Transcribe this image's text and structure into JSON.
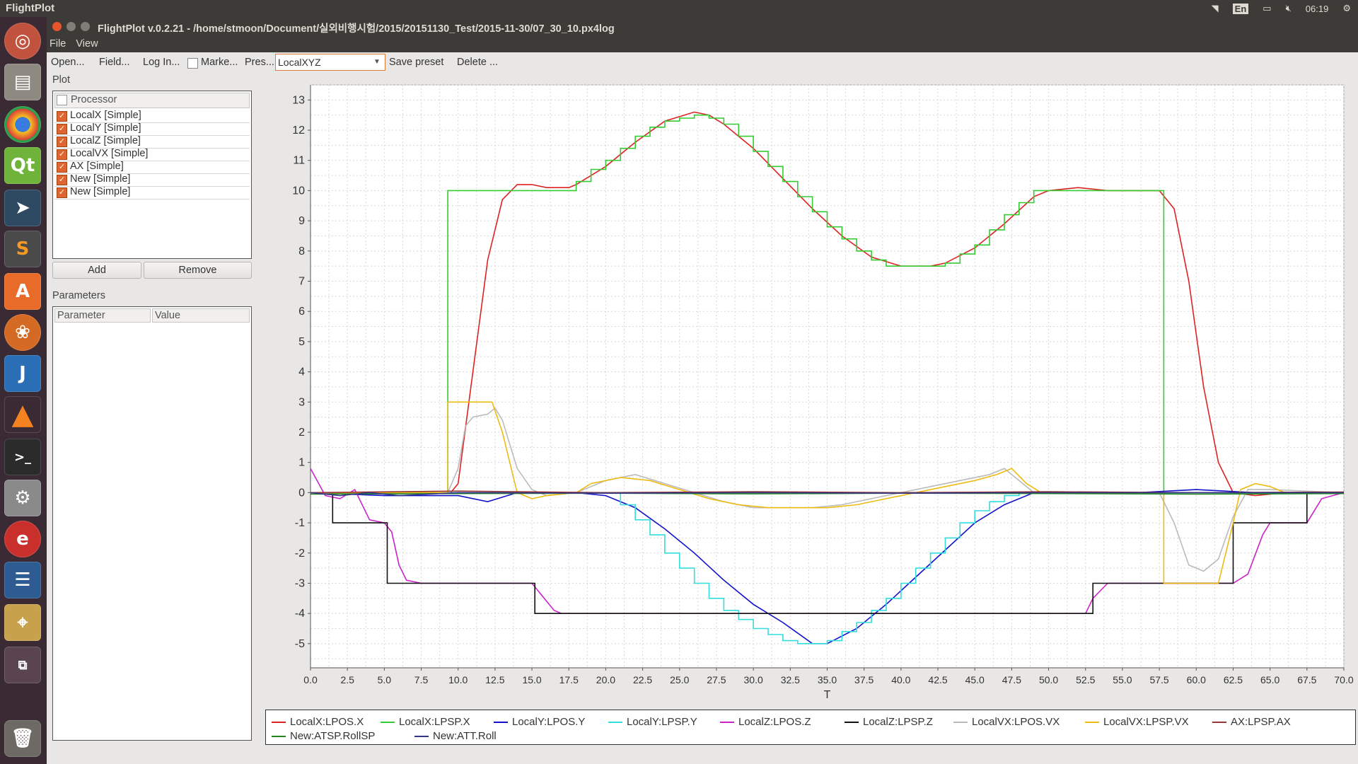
{
  "system": {
    "app_name": "FlightPlot",
    "tray": {
      "keyboard": "En",
      "clock": "06:19"
    }
  },
  "window": {
    "title": "FlightPlot v.0.2.21 - /home/stmoon/Document/실외비행시험/2015/20151130_Test/2015-11-30/07_30_10.px4log"
  },
  "menubar": {
    "items": [
      "File",
      "View"
    ]
  },
  "toolbar": {
    "open": "Open...",
    "fields": "Field...",
    "login": "Log In...",
    "markers": "Marke...",
    "presets": "Pres...",
    "preset_value": "LocalXYZ",
    "save_preset": "Save preset",
    "delete": "Delete ..."
  },
  "plot_panel": {
    "label": "Plot",
    "header": "Processor",
    "items": [
      "LocalX [Simple]",
      "LocalY [Simple]",
      "LocalZ [Simple]",
      "LocalVX [Simple]",
      "AX [Simple]",
      "New [Simple]",
      "New [Simple]"
    ],
    "add_label": "Add",
    "remove_label": "Remove"
  },
  "parameters_panel": {
    "label": "Parameters",
    "col_parameter": "Parameter",
    "col_value": "Value"
  },
  "chart_data": {
    "type": "line",
    "xlabel": "T",
    "xlim": [
      0,
      70
    ],
    "ylim": [
      -5.8,
      13.5
    ],
    "grid": true,
    "legend_position": "bottom",
    "x_ticks": [
      "0.0",
      "2.5",
      "5.0",
      "7.5",
      "10.0",
      "12.5",
      "15.0",
      "17.5",
      "20.0",
      "22.5",
      "25.0",
      "27.5",
      "30.0",
      "32.5",
      "35.0",
      "37.5",
      "40.0",
      "42.5",
      "45.0",
      "47.5",
      "50.0",
      "52.5",
      "55.0",
      "57.5",
      "60.0",
      "62.5",
      "65.0",
      "67.5",
      "70.0"
    ],
    "y_ticks": [
      "13",
      "12",
      "11",
      "10",
      "9",
      "8",
      "7",
      "6",
      "5",
      "4",
      "3",
      "2",
      "1",
      "0",
      "-1",
      "-2",
      "-3",
      "-4",
      "-5"
    ],
    "series": [
      {
        "name": "LocalX:LPOS.X",
        "color": "#dd2222",
        "step": false,
        "points": [
          [
            0,
            0
          ],
          [
            9.5,
            0
          ],
          [
            10,
            0.3
          ],
          [
            11,
            4
          ],
          [
            12,
            7.7
          ],
          [
            13,
            9.7
          ],
          [
            14,
            10.2
          ],
          [
            15,
            10.2
          ],
          [
            16,
            10.1
          ],
          [
            17.5,
            10.1
          ],
          [
            18,
            10.2
          ],
          [
            20,
            10.8
          ],
          [
            22,
            11.6
          ],
          [
            24,
            12.3
          ],
          [
            26,
            12.6
          ],
          [
            27,
            12.5
          ],
          [
            28,
            12.2
          ],
          [
            30,
            11.4
          ],
          [
            32,
            10.4
          ],
          [
            34,
            9.4
          ],
          [
            36,
            8.5
          ],
          [
            38,
            7.8
          ],
          [
            40,
            7.5
          ],
          [
            42,
            7.5
          ],
          [
            43,
            7.6
          ],
          [
            45,
            8.1
          ],
          [
            47,
            8.9
          ],
          [
            49,
            9.8
          ],
          [
            50,
            10
          ],
          [
            52,
            10.1
          ],
          [
            54,
            10
          ],
          [
            56,
            10
          ],
          [
            57.5,
            10
          ],
          [
            58.5,
            9.4
          ],
          [
            59.5,
            7
          ],
          [
            60.5,
            3.5
          ],
          [
            61.5,
            1
          ],
          [
            62.5,
            0
          ],
          [
            64,
            -0.1
          ],
          [
            66,
            0
          ],
          [
            70,
            0
          ]
        ]
      },
      {
        "name": "LocalX:LPSP.X",
        "color": "#33cc33",
        "step": true,
        "points": [
          [
            0,
            0
          ],
          [
            9.3,
            0
          ],
          [
            9.3,
            10
          ],
          [
            17.5,
            10
          ],
          [
            18,
            10.3
          ],
          [
            19,
            10.7
          ],
          [
            20,
            11
          ],
          [
            21,
            11.4
          ],
          [
            22,
            11.8
          ],
          [
            23,
            12.1
          ],
          [
            24,
            12.3
          ],
          [
            25,
            12.4
          ],
          [
            26,
            12.5
          ],
          [
            27,
            12.4
          ],
          [
            28,
            12.2
          ],
          [
            29,
            11.8
          ],
          [
            30,
            11.3
          ],
          [
            31,
            10.8
          ],
          [
            32,
            10.3
          ],
          [
            33,
            9.8
          ],
          [
            34,
            9.3
          ],
          [
            35,
            8.8
          ],
          [
            36,
            8.4
          ],
          [
            37,
            8.0
          ],
          [
            38,
            7.7
          ],
          [
            39,
            7.5
          ],
          [
            40,
            7.5
          ],
          [
            41,
            7.5
          ],
          [
            42,
            7.5
          ],
          [
            43,
            7.6
          ],
          [
            44,
            7.9
          ],
          [
            45,
            8.2
          ],
          [
            46,
            8.7
          ],
          [
            47,
            9.2
          ],
          [
            48,
            9.6
          ],
          [
            49,
            10
          ],
          [
            57.8,
            10
          ],
          [
            57.8,
            0
          ],
          [
            70,
            0
          ]
        ]
      },
      {
        "name": "LocalY:LPOS.Y",
        "color": "#1111cc",
        "step": false,
        "points": [
          [
            0,
            0
          ],
          [
            5,
            -0.1
          ],
          [
            10,
            -0.1
          ],
          [
            12,
            -0.3
          ],
          [
            14,
            0
          ],
          [
            18,
            0
          ],
          [
            20,
            -0.1
          ],
          [
            22,
            -0.5
          ],
          [
            24,
            -1.2
          ],
          [
            26,
            -2
          ],
          [
            28,
            -2.9
          ],
          [
            30,
            -3.7
          ],
          [
            32,
            -4.3
          ],
          [
            34,
            -5
          ],
          [
            35,
            -5
          ],
          [
            37,
            -4.5
          ],
          [
            39,
            -3.7
          ],
          [
            41,
            -2.8
          ],
          [
            43,
            -1.9
          ],
          [
            45,
            -1
          ],
          [
            47,
            -0.4
          ],
          [
            49,
            0
          ],
          [
            52,
            0
          ],
          [
            56,
            0
          ],
          [
            60,
            0.1
          ],
          [
            64,
            0
          ],
          [
            70,
            0
          ]
        ]
      },
      {
        "name": "LocalY:LPSP.Y",
        "color": "#33dddd",
        "step": true,
        "points": [
          [
            0,
            0
          ],
          [
            20,
            0
          ],
          [
            21,
            -0.4
          ],
          [
            22,
            -0.9
          ],
          [
            23,
            -1.4
          ],
          [
            24,
            -2
          ],
          [
            25,
            -2.5
          ],
          [
            26,
            -3
          ],
          [
            27,
            -3.5
          ],
          [
            28,
            -3.9
          ],
          [
            29,
            -4.2
          ],
          [
            30,
            -4.5
          ],
          [
            31,
            -4.7
          ],
          [
            32,
            -4.9
          ],
          [
            33,
            -5
          ],
          [
            34,
            -5
          ],
          [
            35,
            -4.9
          ],
          [
            36,
            -4.6
          ],
          [
            37,
            -4.3
          ],
          [
            38,
            -3.9
          ],
          [
            39,
            -3.5
          ],
          [
            40,
            -3
          ],
          [
            41,
            -2.5
          ],
          [
            42,
            -2
          ],
          [
            43,
            -1.5
          ],
          [
            44,
            -1
          ],
          [
            45,
            -0.6
          ],
          [
            46,
            -0.3
          ],
          [
            47,
            -0.1
          ],
          [
            48,
            0
          ],
          [
            70,
            0
          ]
        ]
      },
      {
        "name": "LocalZ:LPOS.Z",
        "color": "#cc22cc",
        "step": false,
        "points": [
          [
            0,
            0.8
          ],
          [
            1,
            -0.1
          ],
          [
            2,
            -0.2
          ],
          [
            3,
            0.1
          ],
          [
            4,
            -0.9
          ],
          [
            5,
            -1
          ],
          [
            5.5,
            -1.3
          ],
          [
            6,
            -2.4
          ],
          [
            6.5,
            -2.9
          ],
          [
            7.5,
            -3
          ],
          [
            15,
            -3
          ],
          [
            15.5,
            -3.3
          ],
          [
            16.5,
            -3.9
          ],
          [
            17,
            -4
          ],
          [
            52.5,
            -4
          ],
          [
            53,
            -3.5
          ],
          [
            54,
            -3
          ],
          [
            62.5,
            -3
          ],
          [
            63.5,
            -2.7
          ],
          [
            64.5,
            -1.4
          ],
          [
            65,
            -1
          ],
          [
            67.5,
            -1
          ],
          [
            68.5,
            -0.2
          ],
          [
            70,
            0
          ]
        ]
      },
      {
        "name": "LocalZ:LPSP.Z",
        "color": "#111111",
        "step": true,
        "points": [
          [
            0,
            0
          ],
          [
            1.5,
            0
          ],
          [
            1.5,
            -1
          ],
          [
            5.2,
            -1
          ],
          [
            5.2,
            -3
          ],
          [
            15.2,
            -3
          ],
          [
            15.2,
            -4
          ],
          [
            53,
            -4
          ],
          [
            53,
            -3
          ],
          [
            62.5,
            -3
          ],
          [
            62.5,
            -1
          ],
          [
            67.5,
            -1
          ],
          [
            67.5,
            0
          ],
          [
            70,
            0
          ]
        ]
      },
      {
        "name": "LocalVX:LPOS.VX",
        "color": "#bbbbbb",
        "step": false,
        "points": [
          [
            0,
            0
          ],
          [
            9.3,
            0
          ],
          [
            10,
            0.8
          ],
          [
            10.5,
            2.2
          ],
          [
            11,
            2.5
          ],
          [
            12,
            2.6
          ],
          [
            12.5,
            2.8
          ],
          [
            13,
            2.4
          ],
          [
            14,
            0.8
          ],
          [
            15,
            0.1
          ],
          [
            16,
            -0.1
          ],
          [
            18,
            0
          ],
          [
            20,
            0.4
          ],
          [
            22,
            0.6
          ],
          [
            24,
            0.3
          ],
          [
            26,
            0
          ],
          [
            28,
            -0.3
          ],
          [
            30,
            -0.5
          ],
          [
            32,
            -0.5
          ],
          [
            34,
            -0.5
          ],
          [
            36,
            -0.4
          ],
          [
            38,
            -0.2
          ],
          [
            40,
            0
          ],
          [
            42,
            0.2
          ],
          [
            44,
            0.4
          ],
          [
            46,
            0.6
          ],
          [
            47,
            0.8
          ],
          [
            48,
            0.4
          ],
          [
            49,
            0
          ],
          [
            52,
            0
          ],
          [
            57.5,
            0
          ],
          [
            58.5,
            -1
          ],
          [
            59.5,
            -2.4
          ],
          [
            60.5,
            -2.6
          ],
          [
            61.5,
            -2.2
          ],
          [
            62.5,
            -0.8
          ],
          [
            63.5,
            0.1
          ],
          [
            65,
            0.1
          ],
          [
            70,
            0
          ]
        ]
      },
      {
        "name": "LocalVX:LPSP.VX",
        "color": "#eebb11",
        "step": false,
        "points": [
          [
            0,
            0
          ],
          [
            9.3,
            0
          ],
          [
            9.3,
            3
          ],
          [
            12.3,
            3
          ],
          [
            13,
            2
          ],
          [
            14,
            0
          ],
          [
            15,
            -0.2
          ],
          [
            16,
            -0.1
          ],
          [
            18,
            0
          ],
          [
            19,
            0.3
          ],
          [
            21,
            0.5
          ],
          [
            23,
            0.4
          ],
          [
            25,
            0.1
          ],
          [
            27,
            -0.2
          ],
          [
            29,
            -0.4
          ],
          [
            31,
            -0.5
          ],
          [
            33,
            -0.5
          ],
          [
            35,
            -0.5
          ],
          [
            37,
            -0.4
          ],
          [
            39,
            -0.2
          ],
          [
            41,
            0
          ],
          [
            43,
            0.2
          ],
          [
            45,
            0.4
          ],
          [
            46.5,
            0.6
          ],
          [
            47.5,
            0.8
          ],
          [
            48.5,
            0.3
          ],
          [
            49.5,
            0
          ],
          [
            57.8,
            0
          ],
          [
            57.8,
            -3
          ],
          [
            61.5,
            -3
          ],
          [
            62.5,
            -1
          ],
          [
            63,
            0.1
          ],
          [
            64,
            0.3
          ],
          [
            65,
            0.2
          ],
          [
            66,
            0
          ],
          [
            70,
            0
          ]
        ]
      },
      {
        "name": "AX:LPSP.AX",
        "color": "#993333",
        "step": false,
        "points": [
          [
            0,
            0
          ],
          [
            10,
            0.05
          ],
          [
            20,
            0
          ],
          [
            30,
            0.03
          ],
          [
            40,
            0
          ],
          [
            50,
            0.03
          ],
          [
            60,
            0
          ],
          [
            70,
            0.02
          ]
        ]
      },
      {
        "name": "New:ATSP.RollSP",
        "color": "#228822",
        "step": false,
        "points": [
          [
            0,
            -0.05
          ],
          [
            10,
            -0.03
          ],
          [
            20,
            -0.02
          ],
          [
            30,
            -0.04
          ],
          [
            40,
            -0.02
          ],
          [
            50,
            -0.03
          ],
          [
            60,
            -0.05
          ],
          [
            70,
            -0.03
          ]
        ]
      },
      {
        "name": "New:ATT.Roll",
        "color": "#333388",
        "step": false,
        "points": [
          [
            0,
            0
          ],
          [
            2,
            -0.1
          ],
          [
            4,
            0
          ],
          [
            6,
            -0.1
          ],
          [
            10,
            0
          ],
          [
            20,
            -0.02
          ],
          [
            30,
            0
          ],
          [
            40,
            -0.02
          ],
          [
            50,
            0
          ],
          [
            60,
            0
          ],
          [
            70,
            0
          ]
        ]
      }
    ]
  }
}
